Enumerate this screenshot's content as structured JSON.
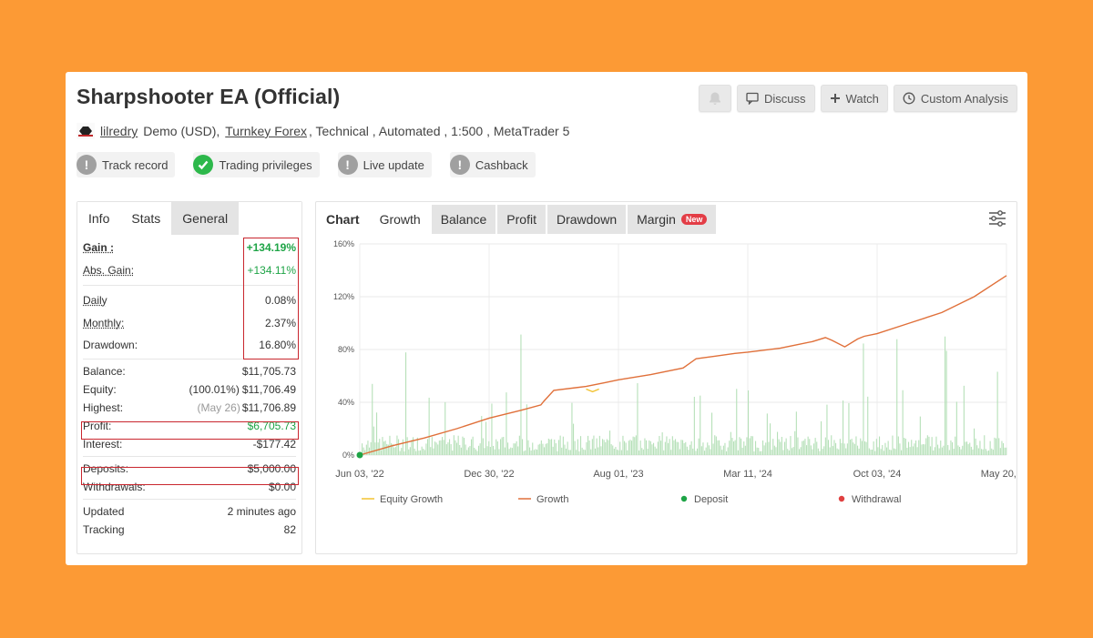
{
  "header": {
    "title": "Sharpshooter EA (Official)",
    "discuss_label": "Discuss",
    "watch_label": "Watch",
    "custom_analysis_label": "Custom Analysis"
  },
  "meta": {
    "user": "lilredry",
    "account": "Demo (USD),",
    "broker": "Turnkey Forex",
    "details": ", Technical , Automated , 1:500 , MetaTrader 5"
  },
  "badges": [
    {
      "label": "Track record",
      "status": "warn"
    },
    {
      "label": "Trading privileges",
      "status": "ok"
    },
    {
      "label": "Live update",
      "status": "warn"
    },
    {
      "label": "Cashback",
      "status": "warn"
    }
  ],
  "left_tabs": [
    "Info",
    "Stats",
    "General"
  ],
  "stats": {
    "gain_label": "Gain :",
    "gain": "+134.19%",
    "abs_gain_label": "Abs. Gain:",
    "abs_gain": "+134.11%",
    "daily_label": "Daily",
    "daily": "0.08%",
    "monthly_label": "Monthly:",
    "monthly": "2.37%",
    "drawdown_label": "Drawdown:",
    "drawdown": "16.80%",
    "balance_label": "Balance:",
    "balance": "$11,705.73",
    "equity_label": "Equity:",
    "equity_pct": "(100.01%)",
    "equity": "$11,706.49",
    "highest_label": "Highest:",
    "highest_date": "(May 26)",
    "highest": "$11,706.89",
    "profit_label": "Profit:",
    "profit": "$6,705.73",
    "interest_label": "Interest:",
    "interest": "-$177.42",
    "deposits_label": "Deposits:",
    "deposits": "$5,000.00",
    "withdrawals_label": "Withdrawals:",
    "withdrawals": "$0.00",
    "updated_label": "Updated",
    "updated": "2 minutes ago",
    "tracking_label": "Tracking",
    "tracking": "82"
  },
  "right_tabs": {
    "chart": "Chart",
    "growth": "Growth",
    "balance": "Balance",
    "profit": "Profit",
    "drawdown": "Drawdown",
    "margin": "Margin",
    "new": "New"
  },
  "colors": {
    "growth_line": "#e0703a",
    "equity_line": "#f2c230",
    "bars": "#b6e0b8",
    "deposit": "#1ea446",
    "withdrawal": "#e04040"
  },
  "chart_data": {
    "type": "line",
    "title": "",
    "xlabel": "",
    "ylabel": "",
    "ylim": [
      0,
      160
    ],
    "y_ticks": [
      "0%",
      "40%",
      "80%",
      "120%",
      "160%"
    ],
    "y_tick_values": [
      0,
      40,
      80,
      120,
      160
    ],
    "x_ticks": [
      "Jun 03, '22",
      "Dec 30, '22",
      "Aug 01, '23",
      "Mar 11, '24",
      "Oct 03, '24",
      "May 20, '25"
    ],
    "x_tick_values": [
      0,
      0.2,
      0.4,
      0.6,
      0.8,
      1.0
    ],
    "series": [
      {
        "name": "Growth",
        "x": [
          0,
          0.05,
          0.1,
          0.15,
          0.2,
          0.25,
          0.28,
          0.285,
          0.3,
          0.35,
          0.38,
          0.4,
          0.45,
          0.5,
          0.52,
          0.55,
          0.58,
          0.6,
          0.65,
          0.7,
          0.72,
          0.73,
          0.75,
          0.77,
          0.78,
          0.8,
          0.85,
          0.9,
          0.95,
          1.0
        ],
        "values": [
          0,
          7,
          13,
          20,
          28,
          34,
          38,
          41,
          49,
          52,
          55,
          57,
          61,
          66,
          73,
          75,
          77,
          78,
          81,
          86,
          89,
          87,
          82,
          88,
          90,
          92,
          100,
          108,
          120,
          136
        ]
      },
      {
        "name": "Equity Growth",
        "x": [
          0.35,
          0.36,
          0.37
        ],
        "values": [
          50,
          48,
          50
        ]
      }
    ],
    "legend": [
      "Equity Growth",
      "Growth",
      "Deposit",
      "Withdrawal"
    ],
    "legend_position": "bottom",
    "deposit_points": [
      {
        "x": 0,
        "y": 0
      }
    ]
  }
}
